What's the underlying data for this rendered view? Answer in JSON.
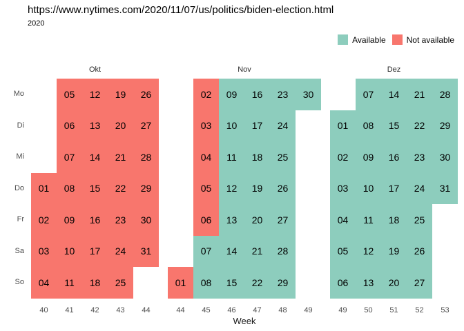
{
  "chart_data": {
    "type": "heatmap",
    "title": "https://www.nytimes.com/2020/11/07/us/politics/biden-election.html",
    "subtitle": "2020",
    "xlabel": "Week",
    "day_labels": [
      "Mo",
      "Di",
      "Mi",
      "Do",
      "Fr",
      "Sa",
      "So"
    ],
    "legend": [
      {
        "label": "Available",
        "status": "available",
        "color": "#8DCDBD"
      },
      {
        "label": "Not available",
        "status": "not_available",
        "color": "#F8766D"
      }
    ],
    "months": [
      {
        "name": "Okt",
        "weeks": [
          40,
          41,
          42,
          43,
          44
        ],
        "cells": [
          [
            null,
            {
              "day": "05",
              "status": "not_available"
            },
            {
              "day": "12",
              "status": "not_available"
            },
            {
              "day": "19",
              "status": "not_available"
            },
            {
              "day": "26",
              "status": "not_available"
            }
          ],
          [
            null,
            {
              "day": "06",
              "status": "not_available"
            },
            {
              "day": "13",
              "status": "not_available"
            },
            {
              "day": "20",
              "status": "not_available"
            },
            {
              "day": "27",
              "status": "not_available"
            }
          ],
          [
            null,
            {
              "day": "07",
              "status": "not_available"
            },
            {
              "day": "14",
              "status": "not_available"
            },
            {
              "day": "21",
              "status": "not_available"
            },
            {
              "day": "28",
              "status": "not_available"
            }
          ],
          [
            {
              "day": "01",
              "status": "not_available"
            },
            {
              "day": "08",
              "status": "not_available"
            },
            {
              "day": "15",
              "status": "not_available"
            },
            {
              "day": "22",
              "status": "not_available"
            },
            {
              "day": "29",
              "status": "not_available"
            }
          ],
          [
            {
              "day": "02",
              "status": "not_available"
            },
            {
              "day": "09",
              "status": "not_available"
            },
            {
              "day": "16",
              "status": "not_available"
            },
            {
              "day": "23",
              "status": "not_available"
            },
            {
              "day": "30",
              "status": "not_available"
            }
          ],
          [
            {
              "day": "03",
              "status": "not_available"
            },
            {
              "day": "10",
              "status": "not_available"
            },
            {
              "day": "17",
              "status": "not_available"
            },
            {
              "day": "24",
              "status": "not_available"
            },
            {
              "day": "31",
              "status": "not_available"
            }
          ],
          [
            {
              "day": "04",
              "status": "not_available"
            },
            {
              "day": "11",
              "status": "not_available"
            },
            {
              "day": "18",
              "status": "not_available"
            },
            {
              "day": "25",
              "status": "not_available"
            },
            null
          ]
        ]
      },
      {
        "name": "Nov",
        "weeks": [
          44,
          45,
          46,
          47,
          48,
          49
        ],
        "cells": [
          [
            null,
            {
              "day": "02",
              "status": "not_available"
            },
            {
              "day": "09",
              "status": "available"
            },
            {
              "day": "16",
              "status": "available"
            },
            {
              "day": "23",
              "status": "available"
            },
            {
              "day": "30",
              "status": "available"
            }
          ],
          [
            null,
            {
              "day": "03",
              "status": "not_available"
            },
            {
              "day": "10",
              "status": "available"
            },
            {
              "day": "17",
              "status": "available"
            },
            {
              "day": "24",
              "status": "available"
            },
            null
          ],
          [
            null,
            {
              "day": "04",
              "status": "not_available"
            },
            {
              "day": "11",
              "status": "available"
            },
            {
              "day": "18",
              "status": "available"
            },
            {
              "day": "25",
              "status": "available"
            },
            null
          ],
          [
            null,
            {
              "day": "05",
              "status": "not_available"
            },
            {
              "day": "12",
              "status": "available"
            },
            {
              "day": "19",
              "status": "available"
            },
            {
              "day": "26",
              "status": "available"
            },
            null
          ],
          [
            null,
            {
              "day": "06",
              "status": "not_available"
            },
            {
              "day": "13",
              "status": "available"
            },
            {
              "day": "20",
              "status": "available"
            },
            {
              "day": "27",
              "status": "available"
            },
            null
          ],
          [
            null,
            {
              "day": "07",
              "status": "available"
            },
            {
              "day": "14",
              "status": "available"
            },
            {
              "day": "21",
              "status": "available"
            },
            {
              "day": "28",
              "status": "available"
            },
            null
          ],
          [
            {
              "day": "01",
              "status": "not_available"
            },
            {
              "day": "08",
              "status": "available"
            },
            {
              "day": "15",
              "status": "available"
            },
            {
              "day": "22",
              "status": "available"
            },
            {
              "day": "29",
              "status": "available"
            },
            null
          ]
        ]
      },
      {
        "name": "Dez",
        "weeks": [
          49,
          50,
          51,
          52,
          53
        ],
        "cells": [
          [
            null,
            {
              "day": "07",
              "status": "available"
            },
            {
              "day": "14",
              "status": "available"
            },
            {
              "day": "21",
              "status": "available"
            },
            {
              "day": "28",
              "status": "available"
            }
          ],
          [
            {
              "day": "01",
              "status": "available"
            },
            {
              "day": "08",
              "status": "available"
            },
            {
              "day": "15",
              "status": "available"
            },
            {
              "day": "22",
              "status": "available"
            },
            {
              "day": "29",
              "status": "available"
            }
          ],
          [
            {
              "day": "02",
              "status": "available"
            },
            {
              "day": "09",
              "status": "available"
            },
            {
              "day": "16",
              "status": "available"
            },
            {
              "day": "23",
              "status": "available"
            },
            {
              "day": "30",
              "status": "available"
            }
          ],
          [
            {
              "day": "03",
              "status": "available"
            },
            {
              "day": "10",
              "status": "available"
            },
            {
              "day": "17",
              "status": "available"
            },
            {
              "day": "24",
              "status": "available"
            },
            {
              "day": "31",
              "status": "available"
            }
          ],
          [
            {
              "day": "04",
              "status": "available"
            },
            {
              "day": "11",
              "status": "available"
            },
            {
              "day": "18",
              "status": "available"
            },
            {
              "day": "25",
              "status": "available"
            },
            null
          ],
          [
            {
              "day": "05",
              "status": "available"
            },
            {
              "day": "12",
              "status": "available"
            },
            {
              "day": "19",
              "status": "available"
            },
            {
              "day": "26",
              "status": "available"
            },
            null
          ],
          [
            {
              "day": "06",
              "status": "available"
            },
            {
              "day": "13",
              "status": "available"
            },
            {
              "day": "20",
              "status": "available"
            },
            {
              "day": "27",
              "status": "available"
            },
            null
          ]
        ]
      }
    ]
  }
}
